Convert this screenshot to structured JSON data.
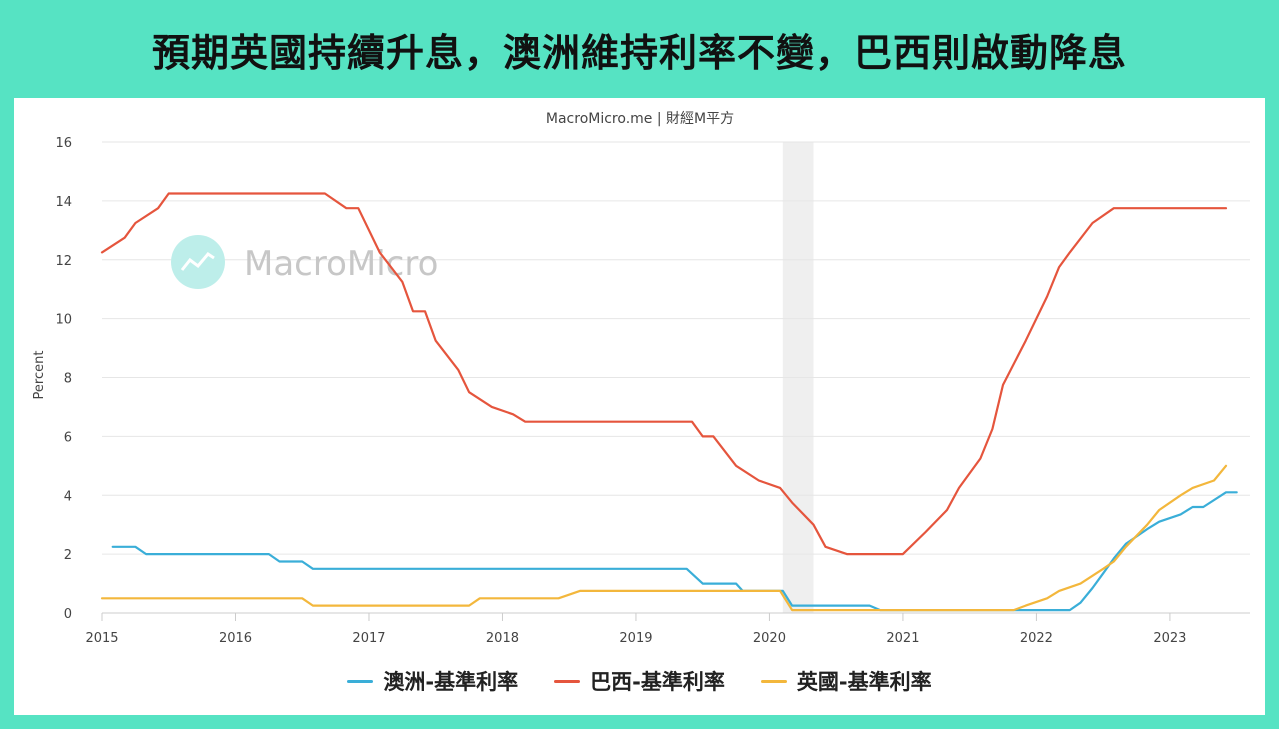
{
  "header": {
    "title": "預期英國持續升息，澳洲維持利率不變，巴西則啟動降息"
  },
  "chart_header": {
    "source": "MacroMicro.me | 財經M平方"
  },
  "watermark": {
    "text": "MacroMicro"
  },
  "chart_data": {
    "type": "line",
    "ylabel": "Percent",
    "ylim": [
      0,
      16
    ],
    "yticks": [
      0,
      2,
      4,
      6,
      8,
      10,
      12,
      14,
      16
    ],
    "xlim": [
      2015.0,
      2023.6
    ],
    "xticks": [
      2015,
      2016,
      2017,
      2018,
      2019,
      2020,
      2021,
      2022,
      2023
    ],
    "grid": true,
    "legend": "bottom",
    "shaded_regions": [
      [
        2020.1,
        2020.33
      ]
    ],
    "series": [
      {
        "name": "澳洲-基準利率",
        "color": "#3aaed8",
        "points": [
          [
            2015.08,
            2.25
          ],
          [
            2015.25,
            2.25
          ],
          [
            2015.33,
            2.0
          ],
          [
            2016.25,
            2.0
          ],
          [
            2016.33,
            1.75
          ],
          [
            2016.5,
            1.75
          ],
          [
            2016.58,
            1.5
          ],
          [
            2019.38,
            1.5
          ],
          [
            2019.5,
            1.0
          ],
          [
            2019.75,
            1.0
          ],
          [
            2019.8,
            0.75
          ],
          [
            2020.1,
            0.75
          ],
          [
            2020.17,
            0.25
          ],
          [
            2020.75,
            0.25
          ],
          [
            2020.83,
            0.1
          ],
          [
            2022.25,
            0.1
          ],
          [
            2022.33,
            0.35
          ],
          [
            2022.42,
            0.85
          ],
          [
            2022.5,
            1.35
          ],
          [
            2022.58,
            1.85
          ],
          [
            2022.67,
            2.35
          ],
          [
            2022.75,
            2.6
          ],
          [
            2022.83,
            2.85
          ],
          [
            2022.92,
            3.1
          ],
          [
            2023.08,
            3.35
          ],
          [
            2023.17,
            3.6
          ],
          [
            2023.25,
            3.6
          ],
          [
            2023.42,
            4.1
          ],
          [
            2023.5,
            4.1
          ]
        ]
      },
      {
        "name": "巴西-基準利率",
        "color": "#e5553d",
        "points": [
          [
            2015.0,
            12.25
          ],
          [
            2015.17,
            12.75
          ],
          [
            2015.25,
            13.25
          ],
          [
            2015.42,
            13.75
          ],
          [
            2015.5,
            14.25
          ],
          [
            2016.67,
            14.25
          ],
          [
            2016.83,
            13.75
          ],
          [
            2016.92,
            13.75
          ],
          [
            2017.08,
            12.25
          ],
          [
            2017.25,
            11.25
          ],
          [
            2017.33,
            10.25
          ],
          [
            2017.42,
            10.25
          ],
          [
            2017.5,
            9.25
          ],
          [
            2017.67,
            8.25
          ],
          [
            2017.75,
            7.5
          ],
          [
            2017.92,
            7.0
          ],
          [
            2018.08,
            6.75
          ],
          [
            2018.17,
            6.5
          ],
          [
            2019.42,
            6.5
          ],
          [
            2019.5,
            6.0
          ],
          [
            2019.58,
            6.0
          ],
          [
            2019.75,
            5.0
          ],
          [
            2019.92,
            4.5
          ],
          [
            2020.08,
            4.25
          ],
          [
            2020.17,
            3.75
          ],
          [
            2020.33,
            3.0
          ],
          [
            2020.42,
            2.25
          ],
          [
            2020.58,
            2.0
          ],
          [
            2021.0,
            2.0
          ],
          [
            2021.17,
            2.75
          ],
          [
            2021.33,
            3.5
          ],
          [
            2021.42,
            4.25
          ],
          [
            2021.58,
            5.25
          ],
          [
            2021.67,
            6.25
          ],
          [
            2021.75,
            7.75
          ],
          [
            2021.92,
            9.25
          ],
          [
            2022.08,
            10.75
          ],
          [
            2022.17,
            11.75
          ],
          [
            2022.25,
            12.25
          ],
          [
            2022.42,
            13.25
          ],
          [
            2022.58,
            13.75
          ],
          [
            2023.42,
            13.75
          ]
        ]
      },
      {
        "name": "英國-基準利率",
        "color": "#f3b73c",
        "points": [
          [
            2015.0,
            0.5
          ],
          [
            2016.5,
            0.5
          ],
          [
            2016.58,
            0.25
          ],
          [
            2017.75,
            0.25
          ],
          [
            2017.83,
            0.5
          ],
          [
            2018.42,
            0.5
          ],
          [
            2018.58,
            0.75
          ],
          [
            2020.08,
            0.75
          ],
          [
            2020.17,
            0.1
          ],
          [
            2021.83,
            0.1
          ],
          [
            2021.92,
            0.25
          ],
          [
            2022.08,
            0.5
          ],
          [
            2022.17,
            0.75
          ],
          [
            2022.33,
            1.0
          ],
          [
            2022.5,
            1.5
          ],
          [
            2022.58,
            1.75
          ],
          [
            2022.67,
            2.25
          ],
          [
            2022.83,
            3.0
          ],
          [
            2022.92,
            3.5
          ],
          [
            2023.08,
            4.0
          ],
          [
            2023.17,
            4.25
          ],
          [
            2023.33,
            4.5
          ],
          [
            2023.42,
            5.0
          ]
        ]
      }
    ]
  }
}
